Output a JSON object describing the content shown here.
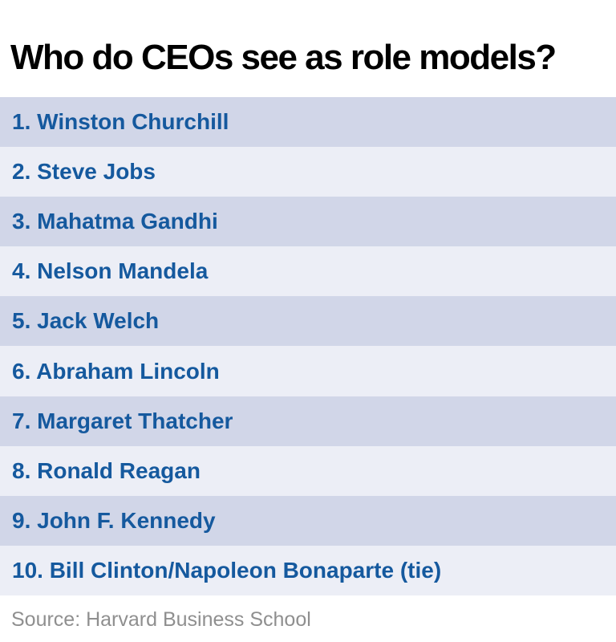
{
  "header": {
    "title": "Who do CEOs see as role models?"
  },
  "list": {
    "items": [
      "1. Winston Churchill",
      "2. Steve Jobs",
      "3. Mahatma Gandhi",
      "4. Nelson Mandela",
      "5. Jack Welch",
      "6. Abraham Lincoln",
      "7. Margaret Thatcher",
      "8. Ronald Reagan",
      "9. John F. Kennedy",
      "10. Bill Clinton/Napoleon Bonaparte (tie)"
    ]
  },
  "footer": {
    "source": "Source: Harvard Business School"
  },
  "colors": {
    "stripe_dark": "#d1d6e8",
    "stripe_light": "#eceef6",
    "item_text": "#15599e",
    "title_text": "#000000",
    "source_text": "#8f8f8f",
    "background": "#ffffff"
  },
  "chart_data": {
    "type": "table",
    "title": "Who do CEOs see as role models?",
    "categories": [
      "1",
      "2",
      "3",
      "4",
      "5",
      "6",
      "7",
      "8",
      "9",
      "10"
    ],
    "values": [
      "Winston Churchill",
      "Steve Jobs",
      "Mahatma Gandhi",
      "Nelson Mandela",
      "Jack Welch",
      "Abraham Lincoln",
      "Margaret Thatcher",
      "Ronald Reagan",
      "John F. Kennedy",
      "Bill Clinton/Napoleon Bonaparte (tie)"
    ],
    "source": "Source: Harvard Business School",
    "layout": "ranked list, alternating row stripes, no axes, no legend"
  }
}
